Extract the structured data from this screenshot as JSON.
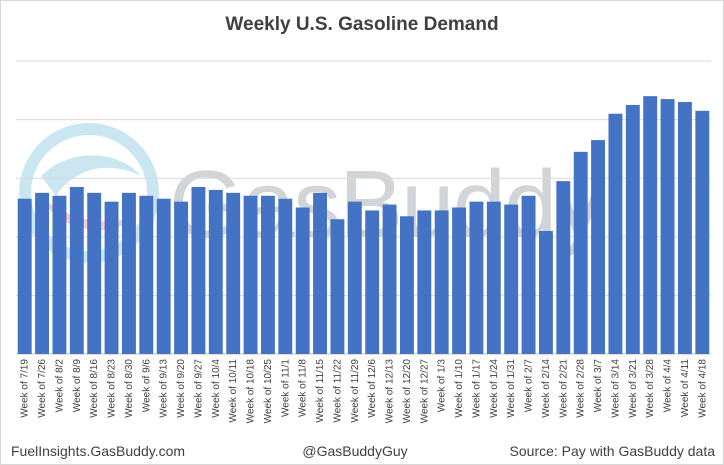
{
  "chart_data": {
    "type": "bar",
    "title": "Weekly U.S. Gasoline Demand",
    "xlabel": "",
    "ylabel": "",
    "ylim": [
      0,
      100
    ],
    "grid": true,
    "colors": {
      "bar": "#4472c4",
      "grid": "#d9d9d9",
      "text": "#404040"
    },
    "categories": [
      "Week of 7/19",
      "Week of 7/26",
      "Week of 8/2",
      "Week of 8/9",
      "Week of 8/16",
      "Week of 8/23",
      "Week of 8/30",
      "Week of 9/6",
      "Week of 9/13",
      "Week of 9/20",
      "Week of 9/27",
      "Week of 10/4",
      "Week of 10/11",
      "Week of 10/18",
      "Week of 10/25",
      "Week of 11/1",
      "Week of 11/8",
      "Week of 11/15",
      "Week of 11/22",
      "Week of 11/29",
      "Week of 12/6",
      "Week of 12/13",
      "Week of 12/20",
      "Week of 12/27",
      "Week of 1/3",
      "Week of 1/10",
      "Week of 1/17",
      "Week of 1/24",
      "Week of 1/31",
      "Week of 2/7",
      "Week of 2/14",
      "Week of 2/21",
      "Week of 2/28",
      "Week of 3/7",
      "Week of 3/14",
      "Week of 3/21",
      "Week of 3/28",
      "Week of 4/4",
      "Week of 4/11",
      "Week of 4/18"
    ],
    "values": [
      53,
      55,
      54,
      57,
      55,
      52,
      55,
      54,
      53,
      52,
      57,
      56,
      55,
      54,
      54,
      53,
      50,
      55,
      46,
      52,
      49,
      51,
      47,
      49,
      49,
      50,
      52,
      52,
      51,
      54,
      42,
      59,
      69,
      73,
      82,
      85,
      88,
      87,
      86,
      83
    ]
  },
  "watermark": {
    "text": "GasBuddy",
    "logo": "gasbuddy-swirl-logo"
  },
  "footer": {
    "left": "FuelInsights.GasBuddy.com",
    "center": "@GasBuddyGuy",
    "right": "Source: Pay with GasBuddy data"
  }
}
